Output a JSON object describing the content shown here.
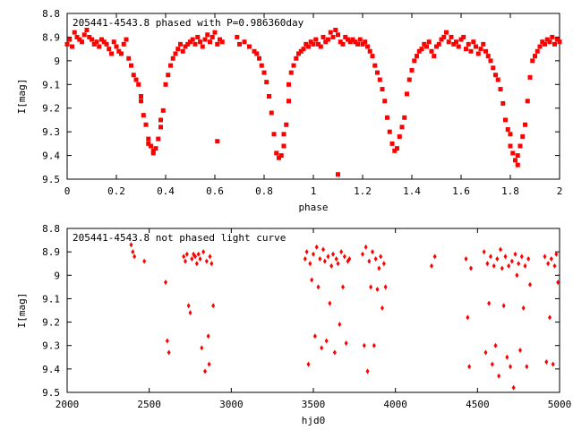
{
  "colors": {
    "points": "#ff0000",
    "axes": "#000000",
    "background": "#ffffff"
  },
  "chart_data": [
    {
      "type": "scatter",
      "title": "205441-4543.8 phased with P=0.986360day",
      "xlabel": "phase",
      "ylabel": "I[mag]",
      "xlim": [
        0,
        2
      ],
      "ylim": [
        8.8,
        9.5
      ],
      "y_inverted": true,
      "grid": false,
      "legend": "none",
      "xticks": [
        0,
        0.2,
        0.4,
        0.6,
        0.8,
        1,
        1.2,
        1.4,
        1.6,
        1.8,
        2
      ],
      "xtick_labels": [
        "0",
        "0.2",
        "0.4",
        "0.6",
        "0.8",
        "1",
        "1.2",
        "1.4",
        "1.6",
        "1.8",
        "2"
      ],
      "yticks": [
        8.8,
        8.9,
        9,
        9.1,
        9.2,
        9.3,
        9.4,
        9.5
      ],
      "ytick_labels": [
        "8.8",
        "8.9",
        "9",
        "9.1",
        "9.2",
        "9.3",
        "9.4",
        "9.5"
      ],
      "marker": "square",
      "points": [
        [
          0.0,
          8.93
        ],
        [
          0.01,
          8.91
        ],
        [
          0.02,
          8.94
        ],
        [
          0.03,
          8.88
        ],
        [
          0.04,
          8.9
        ],
        [
          0.05,
          8.91
        ],
        [
          0.06,
          8.92
        ],
        [
          0.07,
          8.89
        ],
        [
          0.08,
          8.87
        ],
        [
          0.09,
          8.9
        ],
        [
          0.1,
          8.91
        ],
        [
          0.11,
          8.93
        ],
        [
          0.12,
          8.92
        ],
        [
          0.13,
          8.94
        ],
        [
          0.14,
          8.91
        ],
        [
          0.15,
          8.92
        ],
        [
          0.16,
          8.93
        ],
        [
          0.17,
          8.95
        ],
        [
          0.18,
          8.97
        ],
        [
          0.19,
          8.92
        ],
        [
          0.2,
          8.94
        ],
        [
          0.21,
          8.96
        ],
        [
          0.22,
          8.97
        ],
        [
          0.23,
          8.93
        ],
        [
          0.24,
          8.91
        ],
        [
          0.25,
          8.99
        ],
        [
          0.26,
          9.02
        ],
        [
          0.27,
          9.06
        ],
        [
          0.28,
          9.08
        ],
        [
          0.29,
          9.1
        ],
        [
          0.3,
          9.15
        ],
        [
          0.3,
          9.17
        ],
        [
          0.31,
          9.23
        ],
        [
          0.32,
          9.27
        ],
        [
          0.33,
          9.33
        ],
        [
          0.33,
          9.35
        ],
        [
          0.34,
          9.36
        ],
        [
          0.35,
          9.38
        ],
        [
          0.35,
          9.39
        ],
        [
          0.36,
          9.37
        ],
        [
          0.37,
          9.33
        ],
        [
          0.38,
          9.28
        ],
        [
          0.38,
          9.25
        ],
        [
          0.39,
          9.21
        ],
        [
          0.4,
          9.1
        ],
        [
          0.41,
          9.06
        ],
        [
          0.42,
          9.02
        ],
        [
          0.43,
          8.99
        ],
        [
          0.44,
          8.97
        ],
        [
          0.45,
          8.95
        ],
        [
          0.46,
          8.93
        ],
        [
          0.47,
          8.96
        ],
        [
          0.48,
          8.94
        ],
        [
          0.49,
          8.93
        ],
        [
          0.5,
          8.92
        ],
        [
          0.51,
          8.91
        ],
        [
          0.52,
          8.93
        ],
        [
          0.53,
          8.9
        ],
        [
          0.54,
          8.92
        ],
        [
          0.55,
          8.94
        ],
        [
          0.56,
          8.91
        ],
        [
          0.57,
          8.89
        ],
        [
          0.58,
          8.92
        ],
        [
          0.59,
          8.9
        ],
        [
          0.6,
          8.88
        ],
        [
          0.61,
          8.93
        ],
        [
          0.62,
          8.91
        ],
        [
          0.63,
          8.92
        ],
        [
          0.61,
          9.34
        ],
        [
          0.69,
          8.9
        ],
        [
          0.7,
          8.93
        ],
        [
          0.72,
          8.92
        ],
        [
          0.74,
          8.94
        ],
        [
          0.76,
          8.96
        ],
        [
          0.77,
          8.97
        ],
        [
          0.78,
          8.99
        ],
        [
          0.79,
          9.02
        ],
        [
          0.8,
          9.05
        ],
        [
          0.81,
          9.09
        ],
        [
          0.82,
          9.15
        ],
        [
          0.83,
          9.22
        ],
        [
          0.84,
          9.31
        ],
        [
          0.85,
          9.39
        ],
        [
          0.86,
          9.41
        ],
        [
          0.87,
          9.4
        ],
        [
          0.88,
          9.36
        ],
        [
          0.88,
          9.31
        ],
        [
          0.89,
          9.27
        ],
        [
          0.9,
          9.17
        ],
        [
          0.9,
          9.1
        ],
        [
          0.91,
          9.05
        ],
        [
          0.92,
          9.02
        ],
        [
          0.93,
          8.99
        ],
        [
          0.94,
          8.97
        ],
        [
          0.95,
          8.96
        ],
        [
          0.96,
          8.95
        ],
        [
          0.97,
          8.93
        ],
        [
          0.98,
          8.94
        ],
        [
          0.99,
          8.92
        ],
        [
          1.0,
          8.93
        ],
        [
          1.01,
          8.91
        ],
        [
          1.02,
          8.93
        ],
        [
          1.03,
          8.94
        ],
        [
          1.04,
          8.9
        ],
        [
          1.05,
          8.92
        ],
        [
          1.06,
          8.91
        ],
        [
          1.07,
          8.88
        ],
        [
          1.08,
          8.9
        ],
        [
          1.09,
          8.87
        ],
        [
          1.1,
          8.89
        ],
        [
          1.1,
          9.48
        ],
        [
          1.11,
          8.92
        ],
        [
          1.12,
          8.93
        ],
        [
          1.13,
          8.9
        ],
        [
          1.14,
          8.91
        ],
        [
          1.15,
          8.92
        ],
        [
          1.16,
          8.91
        ],
        [
          1.17,
          8.92
        ],
        [
          1.18,
          8.93
        ],
        [
          1.19,
          8.91
        ],
        [
          1.2,
          8.93
        ],
        [
          1.21,
          8.92
        ],
        [
          1.22,
          8.94
        ],
        [
          1.23,
          8.96
        ],
        [
          1.24,
          8.98
        ],
        [
          1.25,
          9.02
        ],
        [
          1.26,
          9.05
        ],
        [
          1.27,
          9.08
        ],
        [
          1.28,
          9.12
        ],
        [
          1.29,
          9.17
        ],
        [
          1.3,
          9.24
        ],
        [
          1.31,
          9.3
        ],
        [
          1.32,
          9.35
        ],
        [
          1.33,
          9.38
        ],
        [
          1.34,
          9.37
        ],
        [
          1.35,
          9.32
        ],
        [
          1.36,
          9.28
        ],
        [
          1.37,
          9.24
        ],
        [
          1.38,
          9.14
        ],
        [
          1.39,
          9.08
        ],
        [
          1.4,
          9.04
        ],
        [
          1.41,
          9.0
        ],
        [
          1.42,
          8.98
        ],
        [
          1.43,
          8.96
        ],
        [
          1.44,
          8.95
        ],
        [
          1.45,
          8.93
        ],
        [
          1.46,
          8.94
        ],
        [
          1.47,
          8.92
        ],
        [
          1.48,
          8.96
        ],
        [
          1.49,
          8.98
        ],
        [
          1.5,
          8.94
        ],
        [
          1.51,
          8.93
        ],
        [
          1.52,
          8.91
        ],
        [
          1.53,
          8.9
        ],
        [
          1.54,
          8.88
        ],
        [
          1.55,
          8.92
        ],
        [
          1.56,
          8.9
        ],
        [
          1.57,
          8.93
        ],
        [
          1.58,
          8.92
        ],
        [
          1.59,
          8.94
        ],
        [
          1.6,
          8.91
        ],
        [
          1.61,
          8.9
        ],
        [
          1.62,
          8.95
        ],
        [
          1.63,
          8.93
        ],
        [
          1.64,
          8.96
        ],
        [
          1.65,
          8.92
        ],
        [
          1.66,
          8.94
        ],
        [
          1.67,
          8.97
        ],
        [
          1.68,
          8.95
        ],
        [
          1.69,
          8.93
        ],
        [
          1.7,
          8.96
        ],
        [
          1.71,
          8.98
        ],
        [
          1.72,
          9.0
        ],
        [
          1.73,
          9.03
        ],
        [
          1.74,
          9.06
        ],
        [
          1.75,
          9.08
        ],
        [
          1.76,
          9.12
        ],
        [
          1.77,
          9.18
        ],
        [
          1.78,
          9.25
        ],
        [
          1.79,
          9.29
        ],
        [
          1.8,
          9.36
        ],
        [
          1.8,
          9.31
        ],
        [
          1.81,
          9.39
        ],
        [
          1.82,
          9.42
        ],
        [
          1.83,
          9.44
        ],
        [
          1.83,
          9.4
        ],
        [
          1.84,
          9.36
        ],
        [
          1.85,
          9.32
        ],
        [
          1.86,
          9.27
        ],
        [
          1.87,
          9.17
        ],
        [
          1.88,
          9.07
        ],
        [
          1.89,
          9.0
        ],
        [
          1.9,
          8.98
        ],
        [
          1.91,
          8.96
        ],
        [
          1.92,
          8.94
        ],
        [
          1.93,
          8.92
        ],
        [
          1.94,
          8.93
        ],
        [
          1.95,
          8.91
        ],
        [
          1.96,
          8.92
        ],
        [
          1.97,
          8.9
        ],
        [
          1.98,
          8.93
        ],
        [
          1.99,
          8.91
        ],
        [
          2.0,
          8.92
        ]
      ]
    },
    {
      "type": "scatter",
      "title": "205441-4543.8 not phased light curve",
      "xlabel": "hjd0",
      "ylabel": "I[mag]",
      "xlim": [
        2000,
        5000
      ],
      "ylim": [
        8.8,
        9.5
      ],
      "y_inverted": true,
      "grid": false,
      "legend": "none",
      "xticks": [
        2000,
        2500,
        3000,
        3500,
        4000,
        4500,
        5000
      ],
      "xtick_labels": [
        "2000",
        "2500",
        "3000",
        "3500",
        "4000",
        "4500",
        "5000"
      ],
      "yticks": [
        8.8,
        8.9,
        9,
        9.1,
        9.2,
        9.3,
        9.4,
        9.5
      ],
      "ytick_labels": [
        "8.8",
        "8.9",
        "9",
        "9.1",
        "9.2",
        "9.3",
        "9.4",
        "9.5"
      ],
      "marker": "diamond",
      "points": [
        [
          2390,
          8.87
        ],
        [
          2400,
          8.9
        ],
        [
          2410,
          8.92
        ],
        [
          2470,
          8.94
        ],
        [
          2600,
          9.03
        ],
        [
          2610,
          9.28
        ],
        [
          2620,
          9.33
        ],
        [
          2710,
          8.92
        ],
        [
          2720,
          8.94
        ],
        [
          2730,
          8.91
        ],
        [
          2740,
          9.13
        ],
        [
          2750,
          9.16
        ],
        [
          2760,
          8.93
        ],
        [
          2770,
          8.91
        ],
        [
          2780,
          8.92
        ],
        [
          2790,
          8.95
        ],
        [
          2800,
          8.91
        ],
        [
          2810,
          8.93
        ],
        [
          2820,
          9.31
        ],
        [
          2830,
          8.9
        ],
        [
          2840,
          9.41
        ],
        [
          2850,
          8.94
        ],
        [
          2860,
          9.26
        ],
        [
          2865,
          9.38
        ],
        [
          2870,
          8.92
        ],
        [
          2880,
          8.95
        ],
        [
          2890,
          9.13
        ],
        [
          3450,
          8.93
        ],
        [
          3460,
          8.9
        ],
        [
          3470,
          9.38
        ],
        [
          3480,
          8.95
        ],
        [
          3490,
          9.02
        ],
        [
          3500,
          8.91
        ],
        [
          3510,
          9.26
        ],
        [
          3520,
          8.88
        ],
        [
          3530,
          9.05
        ],
        [
          3540,
          8.93
        ],
        [
          3550,
          9.31
        ],
        [
          3560,
          8.89
        ],
        [
          3570,
          8.94
        ],
        [
          3580,
          9.28
        ],
        [
          3590,
          8.92
        ],
        [
          3600,
          9.12
        ],
        [
          3610,
          8.96
        ],
        [
          3620,
          8.91
        ],
        [
          3630,
          9.33
        ],
        [
          3640,
          8.93
        ],
        [
          3650,
          8.95
        ],
        [
          3660,
          9.21
        ],
        [
          3670,
          8.9
        ],
        [
          3680,
          9.05
        ],
        [
          3690,
          8.92
        ],
        [
          3700,
          9.29
        ],
        [
          3710,
          8.94
        ],
        [
          3720,
          8.93
        ],
        [
          3800,
          8.91
        ],
        [
          3810,
          9.3
        ],
        [
          3820,
          8.88
        ],
        [
          3830,
          9.41
        ],
        [
          3840,
          8.94
        ],
        [
          3850,
          9.05
        ],
        [
          3860,
          8.9
        ],
        [
          3870,
          9.3
        ],
        [
          3880,
          8.93
        ],
        [
          3890,
          9.06
        ],
        [
          3900,
          8.97
        ],
        [
          3910,
          8.92
        ],
        [
          3920,
          9.14
        ],
        [
          3930,
          8.95
        ],
        [
          3940,
          9.05
        ],
        [
          4220,
          8.96
        ],
        [
          4240,
          8.92
        ],
        [
          4430,
          8.93
        ],
        [
          4440,
          9.18
        ],
        [
          4450,
          9.39
        ],
        [
          4460,
          8.97
        ],
        [
          4540,
          8.9
        ],
        [
          4550,
          9.33
        ],
        [
          4560,
          8.95
        ],
        [
          4570,
          9.12
        ],
        [
          4580,
          8.92
        ],
        [
          4590,
          9.38
        ],
        [
          4600,
          8.96
        ],
        [
          4610,
          9.3
        ],
        [
          4620,
          8.93
        ],
        [
          4630,
          9.43
        ],
        [
          4640,
          8.89
        ],
        [
          4650,
          8.97
        ],
        [
          4660,
          9.13
        ],
        [
          4670,
          8.92
        ],
        [
          4680,
          9.35
        ],
        [
          4690,
          8.96
        ],
        [
          4700,
          9.39
        ],
        [
          4710,
          8.94
        ],
        [
          4720,
          9.48
        ],
        [
          4730,
          8.91
        ],
        [
          4740,
          9.0
        ],
        [
          4750,
          8.95
        ],
        [
          4760,
          9.32
        ],
        [
          4770,
          8.92
        ],
        [
          4780,
          9.14
        ],
        [
          4790,
          8.96
        ],
        [
          4800,
          9.39
        ],
        [
          4810,
          8.93
        ],
        [
          4820,
          9.04
        ],
        [
          4910,
          8.92
        ],
        [
          4920,
          9.37
        ],
        [
          4930,
          8.95
        ],
        [
          4940,
          9.18
        ],
        [
          4950,
          8.93
        ],
        [
          4960,
          9.38
        ],
        [
          4970,
          8.96
        ],
        [
          4980,
          8.91
        ],
        [
          4990,
          9.03
        ]
      ]
    }
  ]
}
